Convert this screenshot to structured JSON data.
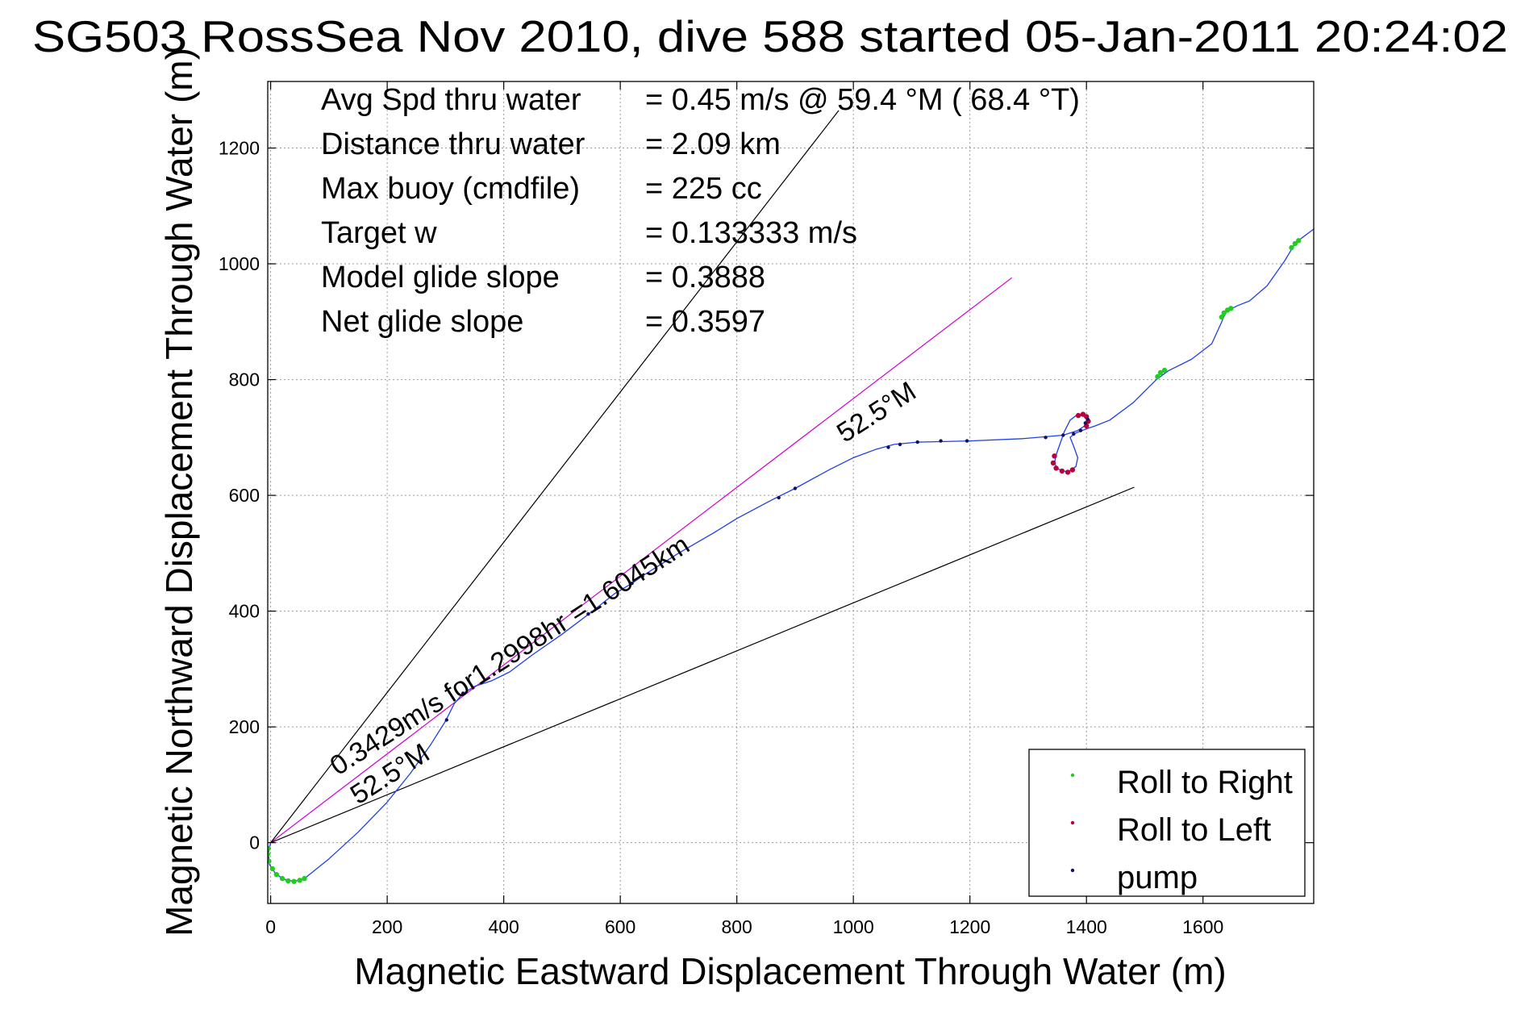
{
  "chart_data": {
    "type": "line",
    "title": "SG503 RossSea Nov 2010, dive 588 started 05-Jan-2011 20:24:02",
    "xlabel": "Magnetic Eastward Displacement Through Water (m)",
    "ylabel": "Magnetic Northward Displacement Through Water (m)",
    "xlim": [
      -5,
      1790
    ],
    "ylim": [
      -105,
      1315
    ],
    "xticks": [
      0,
      200,
      400,
      600,
      800,
      1000,
      1200,
      1400,
      1600
    ],
    "yticks": [
      0,
      200,
      400,
      600,
      800,
      1000,
      1200
    ],
    "grid": true,
    "legend_position": "bottom-right",
    "colors": {
      "track": "#1f3fe6",
      "model_line": "#d000d0",
      "envelope": "#000000",
      "roll_right": "#22cc22",
      "roll_left": "#b8003a",
      "pump": "#101060",
      "grid": "#9a9a9a"
    },
    "info_lines": [
      {
        "label": "Avg Spd thru water",
        "value": "=  0.45 m/s @  59.4 °M ( 68.4 °T)"
      },
      {
        "label": "Distance thru water",
        "value": "=  2.09 km"
      },
      {
        "label": "Max buoy (cmdfile)",
        "value": "= 225 cc"
      },
      {
        "label": "Target w",
        "value": "= 0.133333 m/s"
      },
      {
        "label": "Model glide slope",
        "value": "= 0.3888"
      },
      {
        "label": "Net glide slope",
        "value": "= 0.3597"
      }
    ],
    "annotations": [
      {
        "text": "0.3429m/s for1.2998hr =1.6045km",
        "x": 115,
        "y": 115,
        "angle_deg": 32.6
      },
      {
        "text": "52.5°M",
        "x": 150,
        "y": 65,
        "angle_deg": 32.6
      },
      {
        "text": "52.5°M",
        "x": 985,
        "y": 690,
        "angle_deg": 32.6
      }
    ],
    "reference_lines": [
      {
        "name": "model heading",
        "points": [
          [
            0,
            0
          ],
          [
            1272,
            976
          ]
        ]
      },
      {
        "name": "envelope upper",
        "points": [
          [
            0,
            0
          ],
          [
            975,
            1265
          ]
        ]
      },
      {
        "name": "envelope lower",
        "points": [
          [
            0,
            0
          ],
          [
            1482,
            614
          ]
        ]
      }
    ],
    "track": [
      [
        0,
        0
      ],
      [
        -4,
        -18
      ],
      [
        -2,
        -38
      ],
      [
        8,
        -53
      ],
      [
        22,
        -63
      ],
      [
        40,
        -67
      ],
      [
        58,
        -62
      ],
      [
        100,
        -28
      ],
      [
        150,
        18
      ],
      [
        200,
        70
      ],
      [
        240,
        120
      ],
      [
        275,
        170
      ],
      [
        300,
        210
      ],
      [
        315,
        240
      ],
      [
        330,
        258
      ],
      [
        350,
        270
      ],
      [
        380,
        280
      ],
      [
        410,
        295
      ],
      [
        450,
        325
      ],
      [
        500,
        360
      ],
      [
        550,
        398
      ],
      [
        590,
        430
      ],
      [
        620,
        448
      ],
      [
        640,
        462
      ],
      [
        700,
        500
      ],
      [
        760,
        535
      ],
      [
        800,
        560
      ],
      [
        860,
        592
      ],
      [
        900,
        612
      ],
      [
        960,
        645
      ],
      [
        1000,
        665
      ],
      [
        1040,
        680
      ],
      [
        1070,
        688
      ],
      [
        1110,
        692
      ],
      [
        1200,
        694
      ],
      [
        1290,
        698
      ],
      [
        1360,
        704
      ],
      [
        1385,
        712
      ],
      [
        1400,
        722
      ],
      [
        1400,
        735
      ],
      [
        1385,
        740
      ],
      [
        1372,
        730
      ],
      [
        1362,
        710
      ],
      [
        1355,
        690
      ],
      [
        1348,
        670
      ],
      [
        1345,
        655
      ],
      [
        1352,
        645
      ],
      [
        1368,
        640
      ],
      [
        1382,
        650
      ],
      [
        1385,
        665
      ],
      [
        1378,
        685
      ],
      [
        1372,
        700
      ],
      [
        1380,
        707
      ],
      [
        1400,
        715
      ],
      [
        1415,
        720
      ],
      [
        1440,
        730
      ],
      [
        1480,
        760
      ],
      [
        1520,
        800
      ],
      [
        1540,
        815
      ],
      [
        1580,
        835
      ],
      [
        1615,
        862
      ],
      [
        1630,
        895
      ],
      [
        1640,
        918
      ],
      [
        1660,
        928
      ],
      [
        1680,
        936
      ],
      [
        1710,
        962
      ],
      [
        1740,
        1005
      ],
      [
        1758,
        1035
      ],
      [
        1770,
        1045
      ],
      [
        1790,
        1060
      ]
    ],
    "series": [
      {
        "name": "Roll to Right",
        "marker": "dot",
        "points": [
          [
            -4,
            -10
          ],
          [
            -5,
            -20
          ],
          [
            -3,
            -32
          ],
          [
            3,
            -45
          ],
          [
            10,
            -55
          ],
          [
            20,
            -62
          ],
          [
            30,
            -66
          ],
          [
            40,
            -67
          ],
          [
            50,
            -65
          ],
          [
            58,
            -62
          ],
          [
            1522,
            805
          ],
          [
            1527,
            812
          ],
          [
            1534,
            816
          ],
          [
            1632,
            908
          ],
          [
            1636,
            915
          ],
          [
            1642,
            920
          ],
          [
            1648,
            923
          ],
          [
            1752,
            1028
          ],
          [
            1758,
            1035
          ],
          [
            1764,
            1040
          ]
        ]
      },
      {
        "name": "Roll to Left",
        "marker": "dot",
        "points": [
          [
            1386,
            738
          ],
          [
            1394,
            740
          ],
          [
            1400,
            736
          ],
          [
            1403,
            728
          ],
          [
            1400,
            720
          ],
          [
            1345,
            668
          ],
          [
            1343,
            656
          ],
          [
            1348,
            647
          ],
          [
            1358,
            642
          ],
          [
            1368,
            640
          ],
          [
            1376,
            644
          ]
        ]
      },
      {
        "name": "pump",
        "marker": "dot",
        "points": [
          [
            302,
            212
          ],
          [
            330,
            258
          ],
          [
            545,
            395
          ],
          [
            620,
            448
          ],
          [
            638,
            460
          ],
          [
            872,
            596
          ],
          [
            900,
            612
          ],
          [
            1060,
            683
          ],
          [
            1080,
            688
          ],
          [
            1110,
            692
          ],
          [
            1150,
            694
          ],
          [
            1195,
            694
          ],
          [
            1330,
            700
          ],
          [
            1360,
            704
          ],
          [
            1378,
            706
          ],
          [
            1390,
            712
          ],
          [
            1398,
            725
          ],
          [
            1402,
            732
          ]
        ]
      }
    ]
  }
}
